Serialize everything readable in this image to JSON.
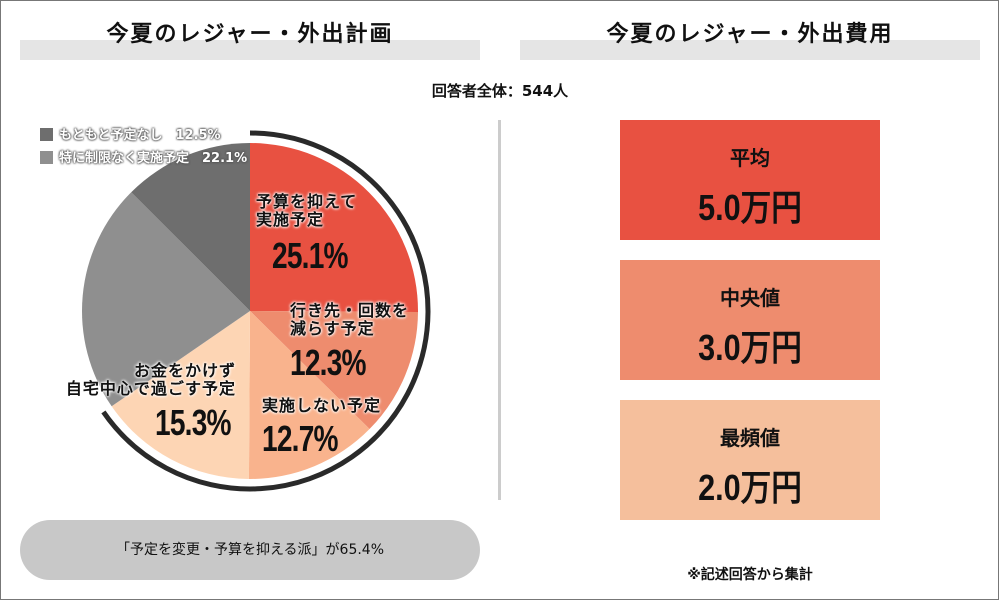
{
  "left_title": "今夏のレジャー・外出計画",
  "right_title": "今夏のレジャー・外出費用",
  "respondents": "回答者全体：544人",
  "summary": "「予定を変更・予算を抑える派」が65.4%",
  "note": "※記述回答から集計",
  "stats": [
    {
      "label": "平均",
      "value": "5.0万円",
      "color": "#e85141"
    },
    {
      "label": "中央値",
      "value": "3.0万円",
      "color": "#ee8c6e"
    },
    {
      "label": "最頻値",
      "value": "2.0万円",
      "color": "#f5bf9c"
    }
  ],
  "chart_data": {
    "type": "pie",
    "title": "今夏のレジャー・外出計画",
    "slices": [
      {
        "label": "予算を抑えて実施予定",
        "value": 25.1,
        "display": "25.1%",
        "color": "#e85141"
      },
      {
        "label": "行き先・回数を減らす予定",
        "value": 12.3,
        "display": "12.3%",
        "color": "#ee8c6e"
      },
      {
        "label": "実施しない予定",
        "value": 12.7,
        "display": "12.7%",
        "color": "#f9b38d"
      },
      {
        "label": "お金をかけず自宅中心で過ごす予定",
        "value": 15.3,
        "display": "15.3%",
        "color": "#fdd5b4"
      },
      {
        "label": "特に制限なく実施予定",
        "value": 22.1,
        "display": "22.1%",
        "color": "#8f8f8f"
      },
      {
        "label": "もともと予定なし",
        "value": 12.5,
        "display": "12.5%",
        "color": "#6e6e6e"
      }
    ],
    "labels_multiline": {
      "0": [
        "予算を抑えて",
        "実施予定"
      ],
      "1": [
        "行き先・回数を",
        "減らす予定"
      ],
      "2": [
        "実施しない予定"
      ],
      "3": [
        "お金をかけず",
        "自宅中心で過ごす予定"
      ]
    },
    "legend": [
      {
        "text": "もともと予定なし　12.5%",
        "color": "#6e6e6e"
      },
      {
        "text": "特に制限なく実施予定　22.1%",
        "color": "#8f8f8f"
      }
    ],
    "highlight_arc_percent": 65.4
  }
}
